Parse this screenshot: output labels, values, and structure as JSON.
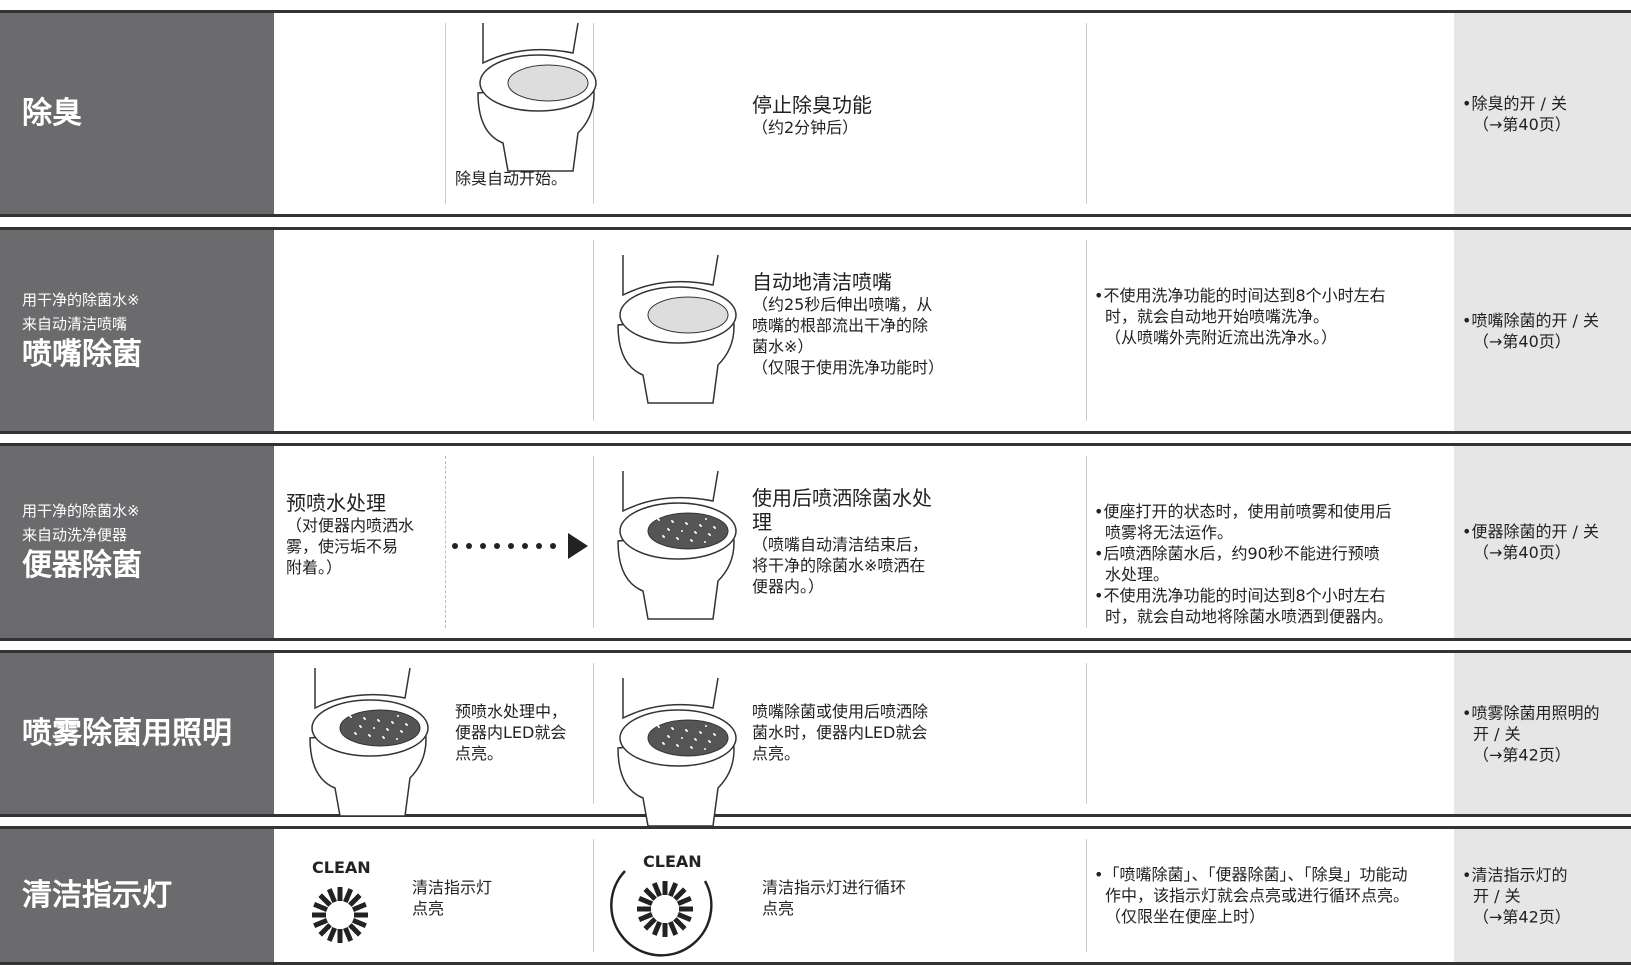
{
  "rows": [
    {
      "title": "除臭",
      "stage_a": {
        "text": [
          "除臭自动开始。"
        ]
      },
      "stage_b": {
        "heading": [
          "停止除臭功能"
        ],
        "detail": [
          "（约2分钟后）"
        ]
      },
      "notes": [],
      "settings": [
        "•除臭的开 / 关",
        "（→第40页）"
      ]
    },
    {
      "subtitle": [
        "用干净的除菌水※",
        "来自动清洁喷嘴"
      ],
      "title": "喷嘴除菌",
      "stage_b": {
        "heading": [
          "自动地清洁喷嘴"
        ],
        "detail": [
          "（约25秒后伸出喷嘴，从",
          "喷嘴的根部流出干净的除",
          "菌水※）",
          "（仅限于使用洗净功能时）"
        ]
      },
      "notes": [
        "•不使用洗净功能的时间达到8个小时左右",
        "时，就会自动地开始喷嘴洗净。",
        "（从喷嘴外壳附近流出洗净水。）"
      ],
      "settings": [
        "•喷嘴除菌的开 / 关",
        "（→第40页）"
      ]
    },
    {
      "subtitle": [
        "用干净的除菌水※",
        "来自动洗净便器"
      ],
      "title": "便器除菌",
      "stage_a": {
        "heading": [
          "预喷水处理"
        ],
        "detail": [
          "（对便器内喷洒水",
          "雾，使污垢不易",
          "附着。）"
        ]
      },
      "stage_b": {
        "heading": [
          "使用后喷洒除菌水处",
          "理"
        ],
        "detail": [
          "（喷嘴自动清洁结束后，",
          "将干净的除菌水※喷洒在",
          "便器内。）"
        ]
      },
      "notes": [
        "•便座打开的状态时，使用前喷雾和使用后",
        "喷雾将无法运作。",
        "•后喷洒除菌水后，约90秒不能进行预喷",
        "水处理。",
        "•不使用洗净功能的时间达到8个小时左右",
        "时，就会自动地将除菌水喷洒到便器内。"
      ],
      "settings": [
        "•便器除菌的开 / 关",
        "（→第40页）"
      ]
    },
    {
      "title": "喷雾除菌用照明",
      "stage_a": {
        "text": [
          "预喷水处理中，",
          "便器内LED就会",
          "点亮。"
        ]
      },
      "stage_b": {
        "text": [
          "喷嘴除菌或使用后喷洒除",
          "菌水时，便器内LED就会",
          "点亮。"
        ]
      },
      "notes": [],
      "settings": [
        "•喷雾除菌用照明的",
        "开 / 关",
        "（→第42页）"
      ]
    },
    {
      "title": "清洁指示灯",
      "stage_a": {
        "icon": "CLEAN",
        "text": [
          "清洁指示灯",
          "点亮"
        ]
      },
      "stage_b": {
        "icon": "CLEAN",
        "text": [
          "清洁指示灯进行循环",
          "点亮"
        ]
      },
      "notes": [
        "•「喷嘴除菌」、「便器除菌」、「除臭」功能动",
        "作中，该指示灯就会点亮或进行循环点亮。",
        "（仅限坐在便座上时）"
      ],
      "settings": [
        "•清洁指示灯的",
        "开 / 关",
        "（→第42页）"
      ]
    }
  ]
}
